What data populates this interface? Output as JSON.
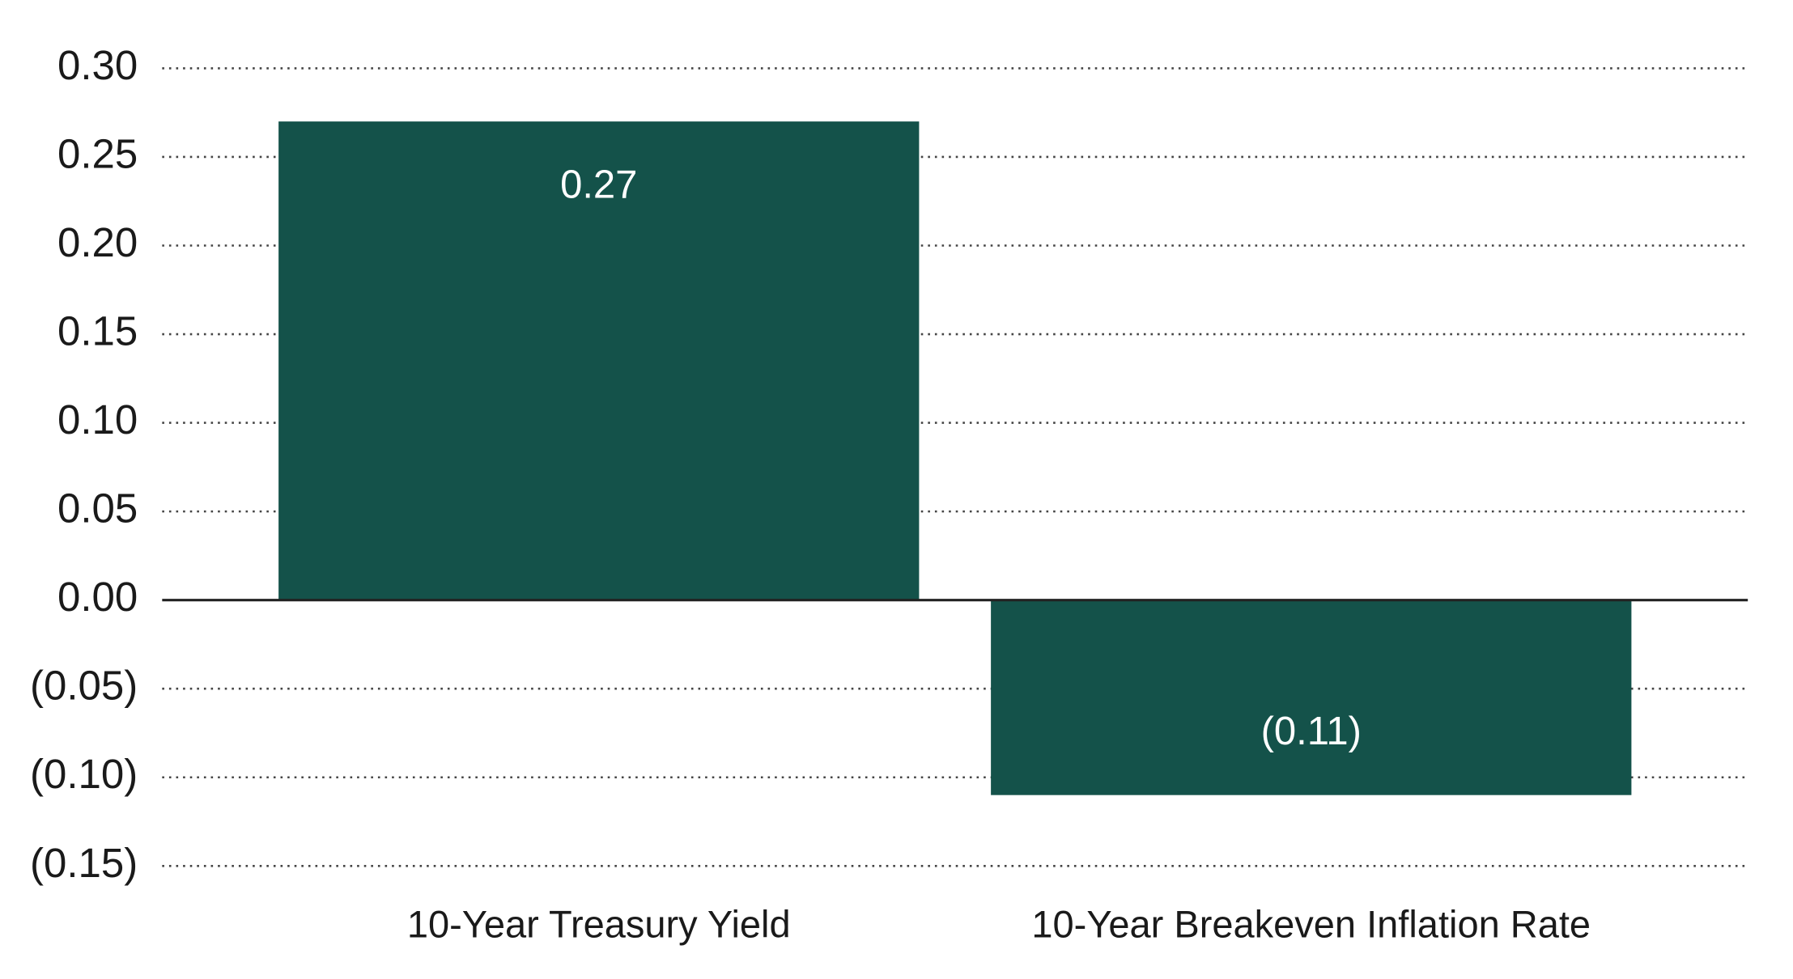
{
  "chart_data": {
    "type": "bar",
    "title": "",
    "xlabel": "",
    "ylabel": "",
    "categories": [
      "10-Year Treasury Yield",
      "10-Year Breakeven Inflation Rate"
    ],
    "values": [
      0.27,
      -0.11
    ],
    "data_labels": [
      "0.27",
      "(0.11)"
    ],
    "ylim": [
      -0.15,
      0.3
    ],
    "yticks": [
      0.3,
      0.25,
      0.2,
      0.15,
      0.1,
      0.05,
      0.0,
      -0.05,
      -0.1,
      -0.15
    ],
    "ytick_labels": [
      "0.30",
      "0.25",
      "0.20",
      "0.15",
      "0.10",
      "0.05",
      "0.00",
      "(0.05)",
      "(0.10)",
      "(0.15)"
    ],
    "grid": true,
    "grid_style": "dotted",
    "legend": "none",
    "colors": {
      "bar": "#14524a",
      "zero_line": "#222222",
      "grid": "#444444",
      "tick_text": "#1a1a1a",
      "bar_label": "#ffffff"
    }
  }
}
